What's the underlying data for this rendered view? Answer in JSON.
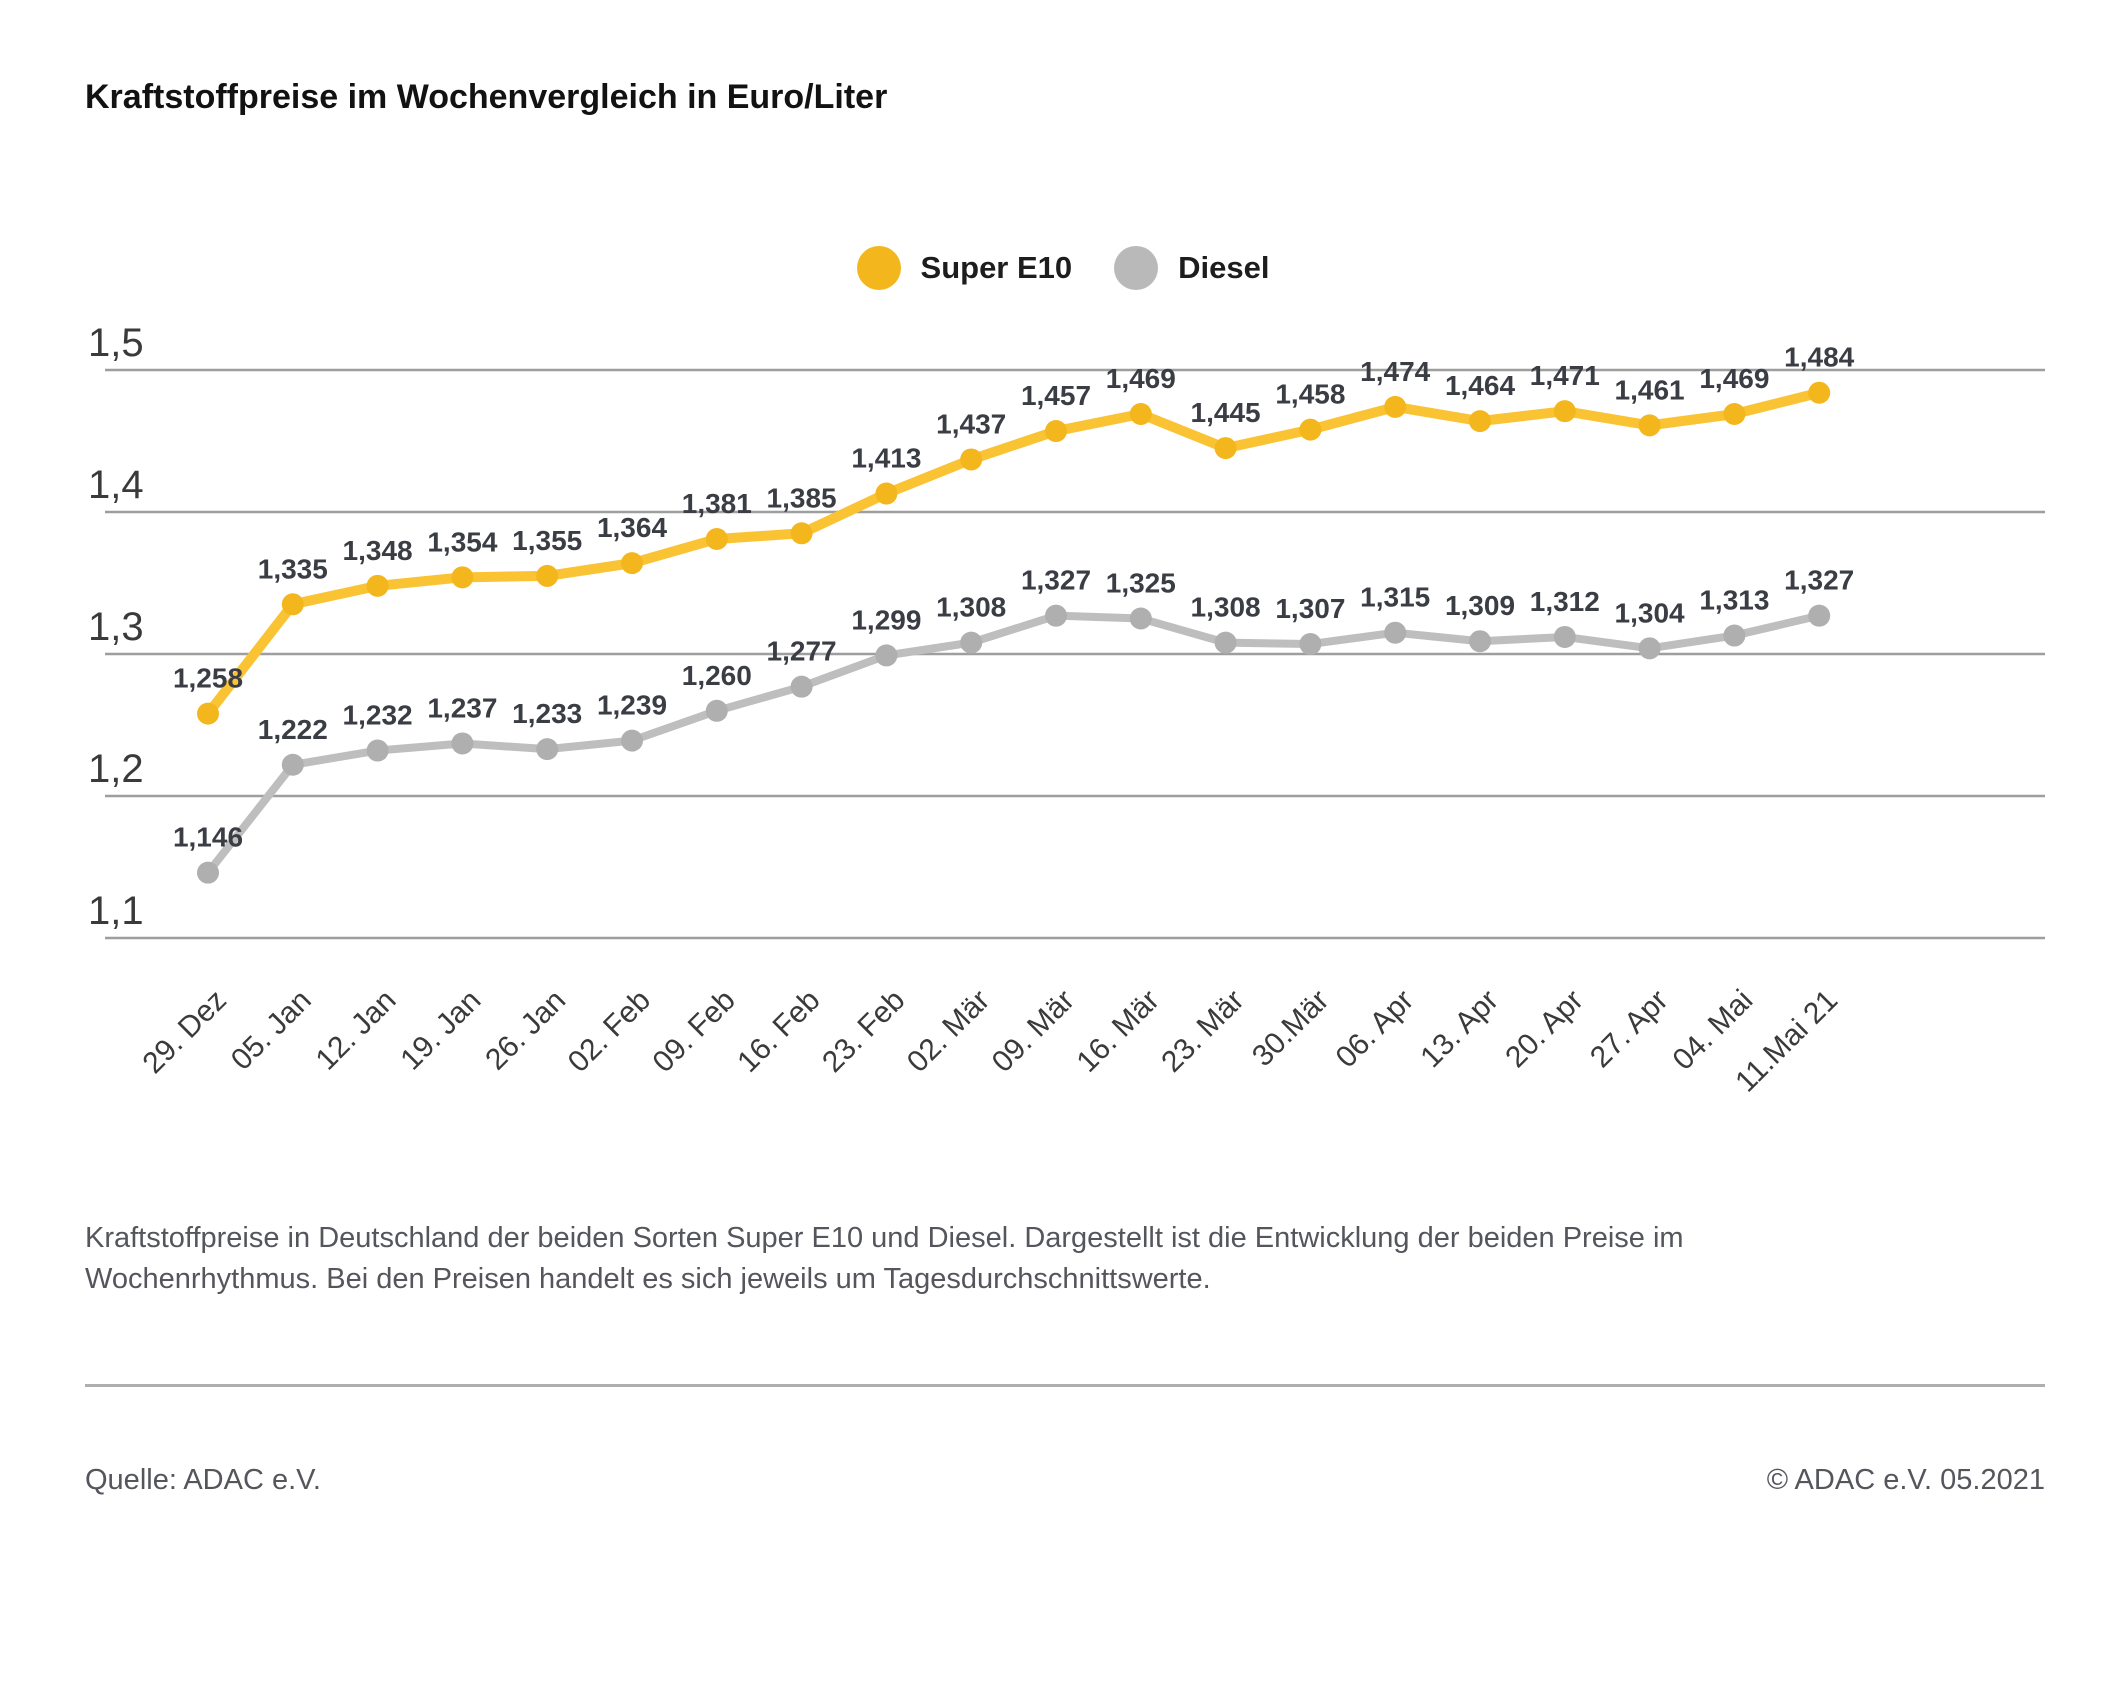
{
  "title": "Kraftstoffpreise im Wochenvergleich in Euro/Liter",
  "legend": {
    "items": [
      {
        "label": "Super E10",
        "color": "#F3B71D"
      },
      {
        "label": "Diesel",
        "color": "#B9B9B9"
      }
    ]
  },
  "chart_data": {
    "type": "line",
    "title": "Kraftstoffpreise im Wochenvergleich in Euro/Liter",
    "categories": [
      "29. Dez",
      "05. Jan",
      "12. Jan",
      "19. Jan",
      "26. Jan",
      "02. Feb",
      "09. Feb",
      "16. Feb",
      "23. Feb",
      "02. Mär",
      "09. Mär",
      "16. Mär",
      "23. Mär",
      "30.Mär",
      "06. Apr",
      "13. Apr",
      "20. Apr",
      "27. Apr",
      "04. Mai",
      "11.Mai 21"
    ],
    "series": [
      {
        "name": "Super E10",
        "line_color": "#F9C333",
        "dot_color": "#F3B71D",
        "values": [
          1.258,
          1.335,
          1.348,
          1.354,
          1.355,
          1.364,
          1.381,
          1.385,
          1.413,
          1.437,
          1.457,
          1.469,
          1.445,
          1.458,
          1.474,
          1.464,
          1.471,
          1.461,
          1.469,
          1.484
        ]
      },
      {
        "name": "Diesel",
        "line_color": "#BEBEBE",
        "dot_color": "#AFAFAF",
        "values": [
          1.146,
          1.222,
          1.232,
          1.237,
          1.233,
          1.239,
          1.26,
          1.277,
          1.299,
          1.308,
          1.327,
          1.325,
          1.308,
          1.307,
          1.315,
          1.309,
          1.312,
          1.304,
          1.313,
          1.327
        ]
      }
    ],
    "xlabel": "",
    "ylabel": "",
    "yticks": [
      "1,5",
      "1,4",
      "1,3",
      "1,2",
      "1,1"
    ],
    "ylim": [
      1.1,
      1.5
    ],
    "grid": true,
    "legend_position": "top-center",
    "value_labels": "german-comma-3-decimals",
    "grid_color": "#9E9E9E",
    "label_color": "#3b3d45",
    "tick_color": "#3a3a3a"
  },
  "caption": "Kraftstoffpreise in Deutschland der beiden Sorten Super E10 und Diesel. Dargestellt ist die Entwicklung der beiden Preise im Wochenrhythmus. Bei den Preisen handelt es sich jeweils um Tagesdurchschnittswerte.",
  "footer": {
    "source": "Quelle: ADAC e.V.",
    "copyright": "© ADAC e.V. 05.2021"
  }
}
